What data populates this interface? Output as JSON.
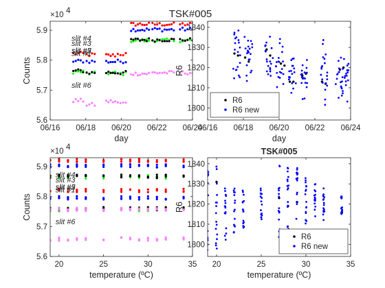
{
  "figure": {
    "title": "TSK#005"
  },
  "colors": {
    "red": "#ff0000",
    "blue": "#0000ff",
    "green": "#00ff00",
    "black": "#000000",
    "magenta": "#ff7fff"
  },
  "chart_data": [
    {
      "type": "scatter",
      "panel": "top-left",
      "xlabel": "day",
      "ylabel": "Counts",
      "exponent_label": "×10",
      "exponent_power": "4",
      "x_ticks": [
        "06/16",
        "06/18",
        "06/20",
        "06/22",
        "06/24"
      ],
      "x_tick_values": [
        16,
        18,
        20,
        22,
        24
      ],
      "xlim": [
        16,
        24
      ],
      "y_ticks": [
        "5.6",
        "5.7",
        "5.8",
        "5.9"
      ],
      "y_tick_values": [
        5.6,
        5.7,
        5.8,
        5.9
      ],
      "ylim": [
        5.6,
        5.93
      ],
      "annotations": [
        {
          "text": "slit #4",
          "x": 17.2,
          "y": 5.865
        },
        {
          "text": "slit #3",
          "x": 17.2,
          "y": 5.847
        },
        {
          "text": "slit #2",
          "x": 17.2,
          "y": 5.823
        },
        {
          "text": "slit #5",
          "x": 17.2,
          "y": 5.821
        },
        {
          "text": "slit #1",
          "x": 17.2,
          "y": 5.819
        },
        {
          "text": "slit #6",
          "x": 17.2,
          "y": 5.708
        }
      ],
      "series": [
        {
          "color": "red",
          "segments": [
            [
              17.3,
              17.85,
              5.822
            ],
            [
              18.05,
              18.5,
              5.818
            ],
            [
              19.15,
              19.65,
              5.816
            ],
            [
              19.8,
              20.25,
              5.82
            ],
            [
              20.55,
              21.55,
              5.92
            ],
            [
              21.75,
              22.15,
              5.92
            ],
            [
              22.3,
              22.95,
              5.92
            ],
            [
              23.3,
              24.0,
              5.92
            ]
          ]
        },
        {
          "color": "blue",
          "segments": [
            [
              17.3,
              17.85,
              5.797
            ],
            [
              18.05,
              18.5,
              5.796
            ],
            [
              19.15,
              19.65,
              5.795
            ],
            [
              19.8,
              20.25,
              5.796
            ],
            [
              20.55,
              21.55,
              5.902
            ],
            [
              21.75,
              22.15,
              5.903
            ],
            [
              22.3,
              22.95,
              5.902
            ],
            [
              23.3,
              24.0,
              5.903
            ]
          ]
        },
        {
          "color": "green",
          "segments": [
            [
              17.3,
              17.85,
              5.761
            ],
            [
              18.05,
              18.5,
              5.755
            ],
            [
              19.15,
              19.65,
              5.757
            ],
            [
              19.8,
              20.25,
              5.755
            ],
            [
              20.55,
              21.55,
              5.866
            ],
            [
              21.75,
              22.15,
              5.866
            ],
            [
              22.3,
              22.95,
              5.866
            ],
            [
              23.3,
              24.0,
              5.866
            ]
          ]
        },
        {
          "color": "black",
          "segments": [
            [
              17.3,
              17.85,
              5.764
            ],
            [
              18.05,
              18.5,
              5.758
            ],
            [
              19.15,
              19.65,
              5.759
            ],
            [
              19.8,
              20.25,
              5.758
            ],
            [
              20.55,
              21.55,
              5.868
            ],
            [
              21.75,
              22.15,
              5.868
            ],
            [
              22.3,
              22.95,
              5.868
            ],
            [
              23.3,
              24.0,
              5.868
            ]
          ]
        },
        {
          "color": "magenta",
          "segments": [
            [
              17.3,
              17.85,
              5.665
            ],
            [
              18.05,
              18.5,
              5.651
            ],
            [
              19.15,
              19.65,
              5.662
            ],
            [
              19.8,
              20.25,
              5.656
            ],
            [
              20.55,
              21.55,
              5.755
            ],
            [
              21.75,
              22.15,
              5.758
            ],
            [
              22.3,
              22.95,
              5.758
            ],
            [
              23.3,
              24.0,
              5.758
            ]
          ]
        }
      ]
    },
    {
      "type": "scatter",
      "panel": "top-right",
      "xlabel": "day",
      "ylabel": "R6",
      "x_ticks": [
        "06/16",
        "06/18",
        "06/20",
        "06/22",
        "06/24"
      ],
      "x_tick_values": [
        16,
        18,
        20,
        22,
        24
      ],
      "xlim": [
        16,
        24
      ],
      "y_ticks": [
        "1800",
        "1810",
        "1820",
        "1830",
        "1840"
      ],
      "y_tick_values": [
        1800,
        1810,
        1820,
        1830,
        1840
      ],
      "ylim": [
        1794,
        1843
      ],
      "legend": {
        "position": "bottom-left",
        "entries": [
          {
            "label": "R6",
            "color": "black"
          },
          {
            "label": "R6 new",
            "color": "blue"
          }
        ]
      },
      "series": [
        {
          "name": "R6",
          "color": "black",
          "points": [
            [
              17.5,
              1827
            ],
            [
              17.7,
              1826
            ],
            [
              18.1,
              1825
            ],
            [
              18.3,
              1823
            ],
            [
              19.3,
              1829
            ],
            [
              19.5,
              1826
            ],
            [
              20.1,
              1822
            ],
            [
              20.3,
              1821
            ],
            [
              20.6,
              1813
            ],
            [
              20.8,
              1813
            ],
            [
              21.3,
              1816
            ],
            [
              21.5,
              1817
            ],
            [
              22.4,
              1813
            ],
            [
              22.6,
              1812
            ],
            [
              23.4,
              1819
            ],
            [
              23.6,
              1820
            ]
          ]
        },
        {
          "name": "R6 new",
          "color": "blue",
          "clusters": [
            {
              "x0": 17.4,
              "x1": 17.85,
              "ymin": 1810,
              "ymax": 1842
            },
            {
              "x0": 18.05,
              "x1": 18.5,
              "ymin": 1812,
              "ymax": 1838
            },
            {
              "x0": 19.2,
              "x1": 19.65,
              "ymin": 1815,
              "ymax": 1838
            },
            {
              "x0": 19.8,
              "x1": 20.25,
              "ymin": 1806,
              "ymax": 1836
            },
            {
              "x0": 20.55,
              "x1": 20.95,
              "ymin": 1805,
              "ymax": 1829
            },
            {
              "x0": 21.2,
              "x1": 21.6,
              "ymin": 1800,
              "ymax": 1827
            },
            {
              "x0": 22.25,
              "x1": 22.7,
              "ymin": 1795,
              "ymax": 1836
            },
            {
              "x0": 23.15,
              "x1": 23.9,
              "ymin": 1803,
              "ymax": 1828
            }
          ]
        }
      ]
    },
    {
      "type": "scatter",
      "panel": "bottom-left",
      "xlabel": "temperature (ºC)",
      "ylabel": "Counts",
      "exponent_label": "×10",
      "exponent_power": "4",
      "x_ticks": [
        "20",
        "25",
        "30",
        "35"
      ],
      "x_tick_values": [
        20,
        25,
        30,
        35
      ],
      "xlim": [
        19,
        35
      ],
      "y_ticks": [
        "5.6",
        "5.7",
        "5.8",
        "5.9"
      ],
      "y_tick_values": [
        5.6,
        5.7,
        5.8,
        5.9
      ],
      "ylim": [
        5.6,
        5.93
      ],
      "annotations": [
        {
          "text": "slit #4",
          "x": 19.6,
          "y": 5.865
        },
        {
          "text": "slit #3",
          "x": 19.6,
          "y": 5.847
        },
        {
          "text": "slit #2",
          "x": 19.6,
          "y": 5.823
        },
        {
          "text": "slit #5",
          "x": 19.6,
          "y": 5.821
        },
        {
          "text": "slit #1",
          "x": 19.6,
          "y": 5.819
        },
        {
          "text": "slit #6",
          "x": 19.6,
          "y": 5.708
        }
      ],
      "temps": [
        19,
        20,
        21,
        22,
        23,
        25,
        27,
        28,
        29,
        30,
        31,
        32,
        34
      ],
      "series": [
        {
          "color": "red",
          "levels": [
            5.921,
            5.821
          ]
        },
        {
          "color": "blue",
          "levels": [
            5.903,
            5.796
          ]
        },
        {
          "color": "green",
          "levels": [
            5.866,
            5.757
          ]
        },
        {
          "color": "black",
          "levels": [
            5.868,
            5.76
          ]
        },
        {
          "color": "magenta",
          "levels": [
            5.757,
            5.658
          ]
        }
      ]
    },
    {
      "type": "scatter",
      "panel": "bottom-right",
      "title": "TSK#005",
      "xlabel": "temperature (ºC)",
      "ylabel": "R6",
      "x_ticks": [
        "20",
        "25",
        "30",
        "35"
      ],
      "x_tick_values": [
        20,
        25,
        30,
        35
      ],
      "xlim": [
        19,
        35
      ],
      "y_ticks": [
        "1800",
        "1810",
        "1820",
        "1830",
        "1840"
      ],
      "y_tick_values": [
        1800,
        1810,
        1820,
        1830,
        1840
      ],
      "ylim": [
        1794,
        1843
      ],
      "legend": {
        "position": "bottom-right",
        "entries": [
          {
            "label": "R6",
            "color": "black"
          },
          {
            "label": "R6 new",
            "color": "blue"
          }
        ]
      },
      "series": [
        {
          "name": "R6",
          "color": "black",
          "points": [
            [
              20,
              1831
            ],
            [
              27,
              1823
            ],
            [
              28,
              1819
            ],
            [
              29,
              1821
            ]
          ]
        },
        {
          "name": "R6 new",
          "color": "blue",
          "columns": [
            {
              "x": 19,
              "ymin": 1796,
              "ymax": 1838
            },
            {
              "x": 20,
              "ymin": 1797,
              "ymax": 1841
            },
            {
              "x": 21,
              "ymin": 1800,
              "ymax": 1830
            },
            {
              "x": 22,
              "ymin": 1805,
              "ymax": 1830
            },
            {
              "x": 23,
              "ymin": 1808,
              "ymax": 1828
            },
            {
              "x": 25,
              "ymin": 1810,
              "ymax": 1828
            },
            {
              "x": 27,
              "ymin": 1800,
              "ymax": 1840
            },
            {
              "x": 28,
              "ymin": 1805,
              "ymax": 1838
            },
            {
              "x": 29,
              "ymin": 1808,
              "ymax": 1843
            },
            {
              "x": 30,
              "ymin": 1810,
              "ymax": 1833
            },
            {
              "x": 31,
              "ymin": 1812,
              "ymax": 1830
            },
            {
              "x": 32,
              "ymin": 1812,
              "ymax": 1828
            },
            {
              "x": 34,
              "ymin": 1814,
              "ymax": 1824
            }
          ]
        }
      ]
    }
  ]
}
